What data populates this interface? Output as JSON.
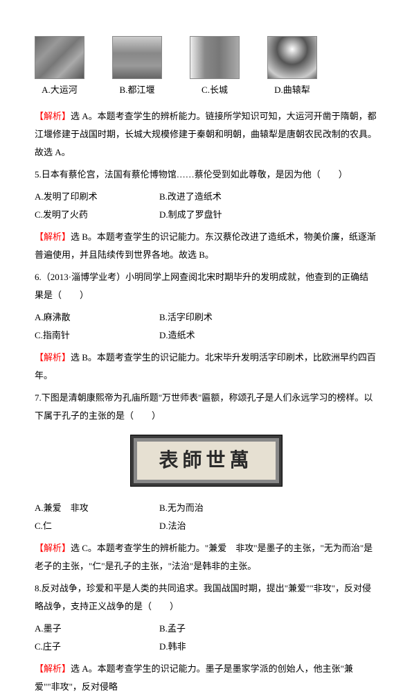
{
  "imageOptions": [
    {
      "label": "A.大运河"
    },
    {
      "label": "B.都江堰"
    },
    {
      "label": "C.长城"
    },
    {
      "label": "D.曲辕犁"
    }
  ],
  "q4_analysis_tag": "【解析】",
  "q4_analysis": "选 A。本题考查学生的辨析能力。链接所学知识可知，大运河开凿于隋朝，都江堰修建于战国时期，长城大规模修建于秦朝和明朝，曲辕犁是唐朝农民改制的农具。故选 A。",
  "q5_stem": "5.日本有蔡伦宫，法国有蔡伦博物馆……蔡伦受到如此尊敬，是因为他（　　）",
  "q5_opts": {
    "A": "A.发明了印刷术",
    "B": "B.改进了造纸术",
    "C": "C.发明了火药",
    "D": "D.制成了罗盘针"
  },
  "q5_analysis_tag": "【解析】",
  "q5_analysis": "选 B。本题考查学生的识记能力。东汉蔡伦改进了造纸术，物美价廉，纸逐渐普遍使用，并且陆续传到世界各地。故选 B。",
  "q6_stem": "6.（2013·淄博学业考）小明同学上网查阅北宋时期毕升的发明成就，他查到的正确结果是（　　）",
  "q6_opts": {
    "A": "A.麻沸散",
    "B": "B.活字印刷术",
    "C": "C.指南针",
    "D": "D.造纸术"
  },
  "q6_analysis_tag": "【解析】",
  "q6_analysis": "选 B。本题考查学生的识记能力。北宋毕升发明活字印刷术，比欧洲早约四百年。",
  "q7_stem": "7.下图是清朝康熙帝为孔庙所题\"万世师表\"匾额，称颂孔子是人们永远学习的榜样。以下属于孔子的主张的是（　　）",
  "plaque_text": "表師世萬",
  "q7_opts": {
    "A": "A.兼爱　非攻",
    "B": "B.无为而治",
    "C": "C.仁",
    "D": "D.法治"
  },
  "q7_analysis_tag": "【解析】",
  "q7_analysis": "选 C。本题考查学生的辨析能力。\"兼爱　非攻\"是墨子的主张，\"无为而治\"是老子的主张，\"仁\"是孔子的主张，\"法治\"是韩非的主张。",
  "q8_stem": "8.反对战争，珍爱和平是人类的共同追求。我国战国时期，提出\"兼爱\"\"非攻\"，反对侵略战争，支持正义战争的是（　　）",
  "q8_opts": {
    "A": "A.墨子",
    "B": "B.孟子",
    "C": "C.庄子",
    "D": "D.韩非"
  },
  "q8_analysis_tag": "【解析】",
  "q8_analysis": "选 A。本题考查学生的识记能力。墨子是墨家学派的创始人，他主张\"兼爱\"\"非攻\"，反对侵略"
}
